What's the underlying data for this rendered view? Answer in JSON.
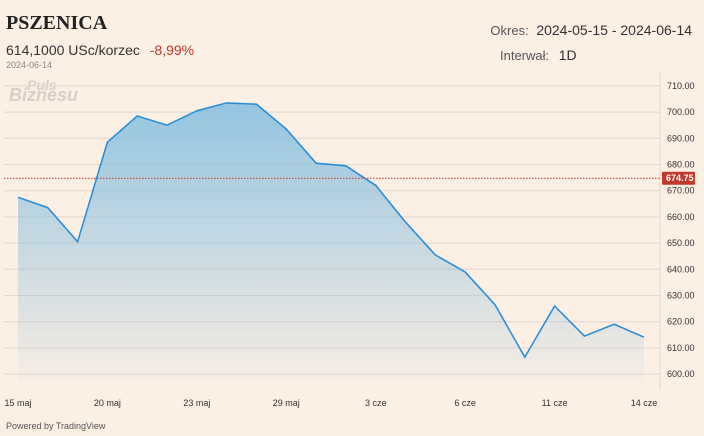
{
  "header": {
    "title": "PSZENICA",
    "price": "614,1000 USc/korzec",
    "change": "-8,99%",
    "date": "2024-06-14",
    "period_label": "Okres:",
    "period_value": "2024-05-15 - 2024-06-14",
    "interval_label": "Interwał:",
    "interval_value": "1D"
  },
  "logo": {
    "line1": "Puls",
    "line2": "Biznesu"
  },
  "footer": {
    "powered": "Powered by TradingView"
  },
  "colors": {
    "line": "#2b8ed6",
    "fill_top": "#8fc2e0",
    "marker": "#c0392b",
    "grid": "#e3d6cb"
  },
  "chart_data": {
    "type": "area",
    "y_ticks": [
      "710.00",
      "700.00",
      "690.00",
      "680.00",
      "670.00",
      "660.00",
      "650.00",
      "640.00",
      "630.00",
      "620.00",
      "610.00",
      "600.00"
    ],
    "x_ticks": [
      "15 maj",
      "20 maj",
      "23 maj",
      "29 maj",
      "3 cze",
      "6 cze",
      "11 cze",
      "14 cze"
    ],
    "x_tick_index": [
      0,
      3,
      6,
      9,
      12,
      15,
      18,
      21
    ],
    "ylim": [
      597,
      713
    ],
    "values": [
      667.5,
      663.5,
      650.5,
      688.5,
      698.5,
      695,
      700.5,
      703.5,
      703,
      693.5,
      680.5,
      679.5,
      672,
      658,
      645.5,
      639,
      626.5,
      606.5,
      626,
      614.5,
      619,
      614.1
    ],
    "current_price_label": "674.75",
    "current_price": 674.75
  }
}
